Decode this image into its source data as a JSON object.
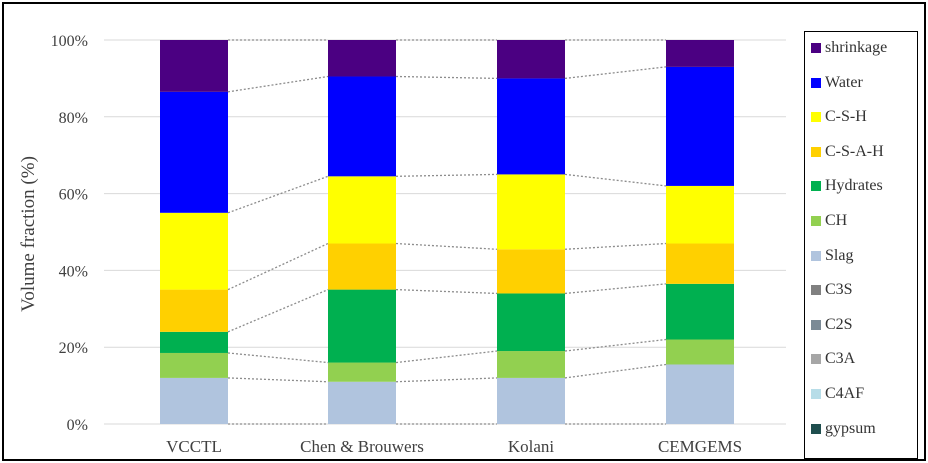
{
  "chart_data": {
    "type": "bar",
    "stacked": true,
    "categories": [
      "VCCTL",
      "Chen & Brouwers",
      "Kolani",
      "CEMGEMS"
    ],
    "ylabel": "Volume fraction (%)",
    "ylim": [
      0,
      100
    ],
    "yticks": [
      "0%",
      "20%",
      "40%",
      "60%",
      "80%",
      "100%"
    ],
    "grid": true,
    "legend_position": "right",
    "series": [
      {
        "name": "gypsum",
        "color": "#1f4e4e",
        "values": [
          0,
          0,
          0,
          0
        ]
      },
      {
        "name": "C4AF",
        "color": "#b7dde8",
        "values": [
          0,
          0,
          0,
          0
        ]
      },
      {
        "name": "C3A",
        "color": "#a6a6a6",
        "values": [
          0,
          0,
          0,
          0
        ]
      },
      {
        "name": "C2S",
        "color": "#7b8a96",
        "values": [
          0,
          0,
          0,
          0
        ]
      },
      {
        "name": "C3S",
        "color": "#808080",
        "values": [
          0,
          0,
          0,
          0
        ]
      },
      {
        "name": "Slag",
        "color": "#b0c4de",
        "values": [
          12,
          11,
          12,
          15.5
        ]
      },
      {
        "name": "CH",
        "color": "#92d050",
        "values": [
          6.5,
          5,
          7,
          6.5
        ]
      },
      {
        "name": "Hydrates",
        "color": "#00b050",
        "values": [
          5.5,
          19,
          15,
          14.5
        ]
      },
      {
        "name": "C-S-A-H",
        "color": "#ffd000",
        "values": [
          11,
          12,
          11.5,
          10.5
        ]
      },
      {
        "name": "C-S-H",
        "color": "#ffff00",
        "values": [
          20,
          17.5,
          19.5,
          15
        ]
      },
      {
        "name": "Water",
        "color": "#0000ff",
        "values": [
          31.5,
          26,
          25,
          31
        ]
      },
      {
        "name": "shrinkage",
        "color": "#4b0082",
        "values": [
          13.5,
          9.5,
          10,
          7
        ]
      }
    ],
    "legend_order": [
      "shrinkage",
      "Water",
      "C-S-H",
      "C-S-A-H",
      "Hydrates",
      "CH",
      "Slag",
      "C3S",
      "C2S",
      "C3A",
      "C4AF",
      "gypsum"
    ]
  }
}
